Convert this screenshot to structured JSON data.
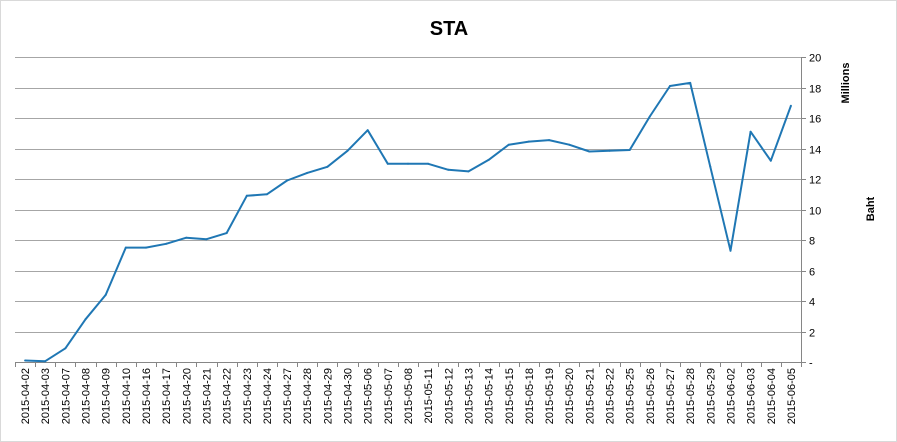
{
  "chart_data": {
    "type": "line",
    "title": "STA",
    "xlabel": "",
    "ylabel": "Baht",
    "y_unit_label": "Millions",
    "y_axis_side": "right",
    "grid": true,
    "legend": "none",
    "ylim": [
      0,
      20
    ],
    "yticks": [
      "-",
      "2",
      "4",
      "6",
      "8",
      "10",
      "12",
      "14",
      "16",
      "18",
      "20"
    ],
    "categories": [
      "2015-04-02",
      "2015-04-03",
      "2015-04-07",
      "2015-04-08",
      "2015-04-09",
      "2015-04-10",
      "2015-04-16",
      "2015-04-17",
      "2015-04-20",
      "2015-04-21",
      "2015-04-22",
      "2015-04-23",
      "2015-04-24",
      "2015-04-27",
      "2015-04-28",
      "2015-04-29",
      "2015-04-30",
      "2015-05-06",
      "2015-05-07",
      "2015-05-08",
      "2015-05-11",
      "2015-05-12",
      "2015-05-13",
      "2015-05-14",
      "2015-05-15",
      "2015-05-18",
      "2015-05-19",
      "2015-05-20",
      "2015-05-21",
      "2015-05-22",
      "2015-05-25",
      "2015-05-26",
      "2015-05-27",
      "2015-05-28",
      "2015-05-29",
      "2015-06-02",
      "2015-06-03",
      "2015-06-04",
      "2015-06-05"
    ],
    "series": [
      {
        "color": "#1f77b4",
        "values": [
          0.1,
          0.05,
          0.9,
          2.8,
          4.4,
          7.5,
          7.5,
          7.75,
          8.15,
          8.05,
          8.45,
          10.9,
          11.0,
          11.9,
          12.4,
          12.8,
          13.85,
          15.2,
          13.0,
          13.0,
          13.0,
          12.6,
          12.5,
          13.25,
          14.25,
          14.45,
          14.55,
          14.25,
          13.8,
          13.85,
          13.9,
          16.1,
          18.1,
          18.3,
          12.8,
          7.3,
          15.1,
          13.2,
          16.8
        ]
      }
    ]
  }
}
